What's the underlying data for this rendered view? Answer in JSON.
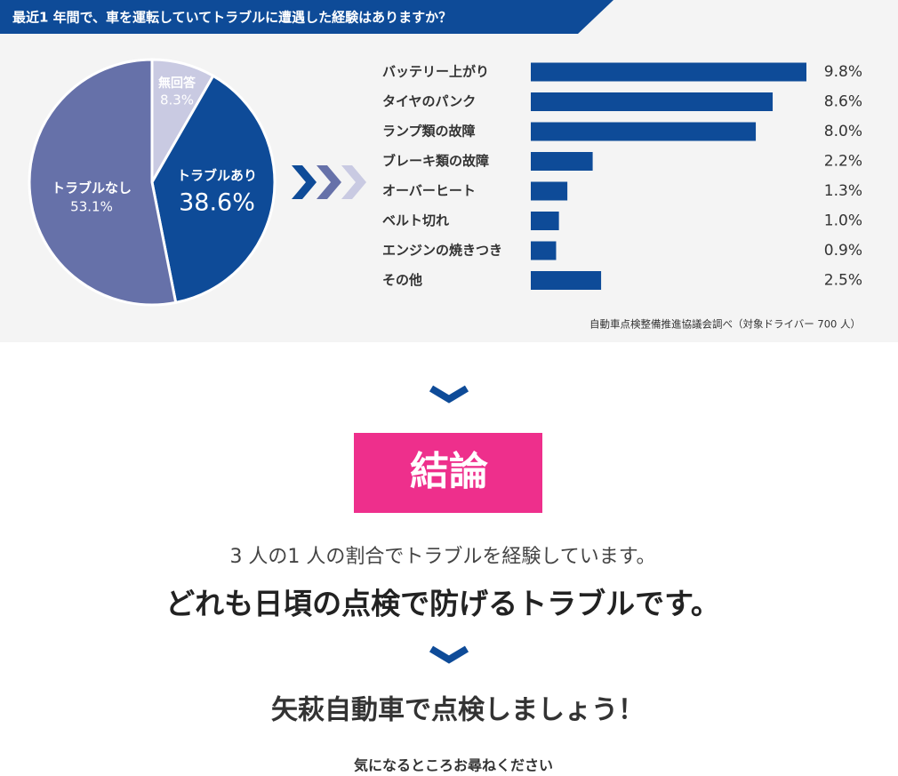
{
  "header": {
    "title": "最近1 年間で、車を運転していてトラブルに遭遇した経験はありますか？"
  },
  "chart_data": [
    {
      "type": "pie",
      "categories": [
        "無回答",
        "トラブルあり",
        "トラブルなし"
      ],
      "values": [
        8.3,
        38.6,
        53.1
      ],
      "value_labels": [
        "8.3%",
        "38.6%",
        "53.1%"
      ],
      "colors": [
        "#c9cae2",
        "#0e4b98",
        "#6671a9"
      ]
    },
    {
      "type": "bar",
      "categories": [
        "バッテリー上がり",
        "タイヤのパンク",
        "ランプ類の故障",
        "ブレーキ類の故障",
        "オーバーヒート",
        "ベルト切れ",
        "エンジンの焼きつき",
        "その他"
      ],
      "values": [
        9.8,
        8.6,
        8.0,
        2.2,
        1.3,
        1.0,
        0.9,
        2.5
      ],
      "value_labels": [
        "9.8%",
        "8.6%",
        "8.0%",
        "2.2%",
        "1.3%",
        "1.0%",
        "0.9%",
        "2.5%"
      ],
      "color": "#0e4b98",
      "source": "自動車点検整備推進協議会調べ（対象ドライバー 700 人）"
    }
  ],
  "conclusion": {
    "badge": "結論",
    "line1": "3 人の1 人の割合でトラブルを経験しています。",
    "line2": "どれも日頃の点検で防げるトラブルです。",
    "line3": "矢萩自動車で点検しましょう！",
    "line4": "気になるところお尋ねください"
  }
}
